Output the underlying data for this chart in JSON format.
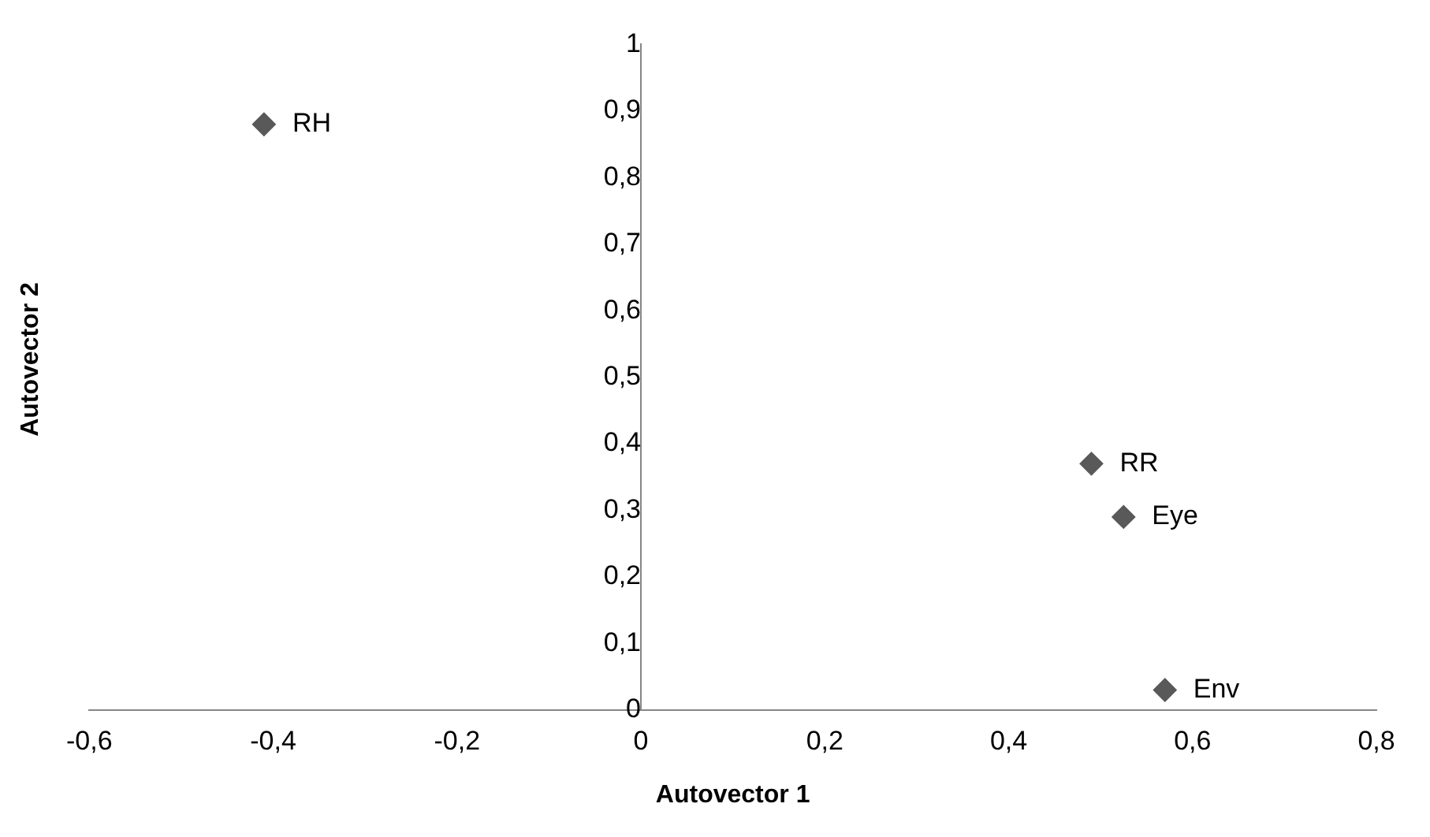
{
  "chart_data": {
    "type": "scatter",
    "xlabel": "Autovector 1",
    "ylabel": "Autovector 2",
    "x": [
      -0.41,
      0.49,
      0.525,
      0.57
    ],
    "values": [
      0.88,
      0.37,
      0.29,
      0.03
    ],
    "color": "#595959",
    "marker": "diamond",
    "grid": false,
    "legend": false,
    "xlim": [
      -0.6,
      0.8
    ],
    "xticks": [
      {
        "value": -0.6,
        "label": "-0,6"
      },
      {
        "value": -0.4,
        "label": "-0,4"
      },
      {
        "value": -0.2,
        "label": "-0,2"
      },
      0,
      {
        "value": 0.2,
        "label": "0,2"
      },
      {
        "value": 0.4,
        "label": "0,4"
      },
      {
        "value": 0.6,
        "label": "0,6"
      },
      {
        "value": 0.8,
        "label": "0,8"
      }
    ],
    "ylim": [
      0,
      1
    ],
    "yticks": [
      0,
      {
        "value": 0.1,
        "label": "0,1"
      },
      {
        "value": 0.2,
        "label": "0,2"
      },
      {
        "value": 0.3,
        "label": "0,3"
      },
      {
        "value": 0.4,
        "label": "0,4"
      },
      {
        "value": 0.5,
        "label": "0,5"
      },
      {
        "value": 0.6,
        "label": "0,6"
      },
      {
        "value": 0.7,
        "label": "0,7"
      },
      {
        "value": 0.8,
        "label": "0,8"
      },
      {
        "value": 0.9,
        "label": "0,9"
      },
      1
    ],
    "annotations": [
      {
        "text": "RH",
        "x": -0.41,
        "y": 0.88
      },
      {
        "text": "RR",
        "x": 0.49,
        "y": 0.37
      },
      {
        "text": "Eye",
        "x": 0.525,
        "y": 0.29
      },
      {
        "text": "Env",
        "x": 0.57,
        "y": 0.03
      }
    ]
  }
}
